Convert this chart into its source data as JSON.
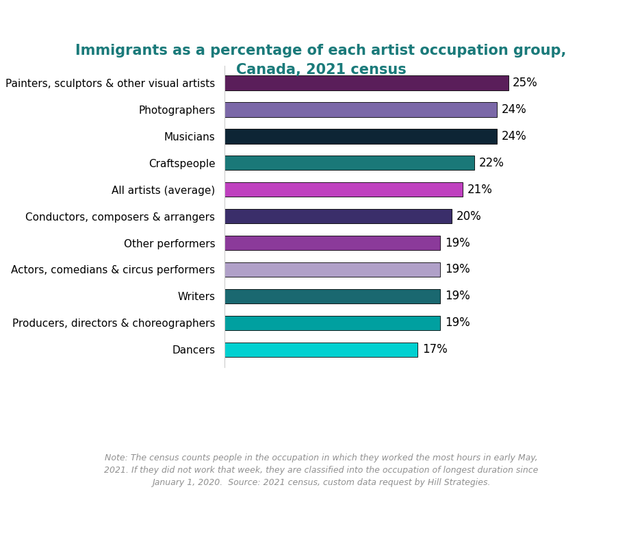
{
  "title": "Immigrants as a percentage of each artist occupation group,\nCanada, 2021 census",
  "title_color": "#1a7a7a",
  "categories": [
    "Dancers",
    "Producers, directors & choreographers",
    "Writers",
    "Actors, comedians & circus performers",
    "Other performers",
    "Conductors, composers & arrangers",
    "All artists (average)",
    "Craftspeople",
    "Musicians",
    "Photographers",
    "Painters, sculptors & other visual artists"
  ],
  "values": [
    17,
    19,
    19,
    19,
    19,
    20,
    21,
    22,
    24,
    24,
    25
  ],
  "bar_colors": [
    "#00d0d0",
    "#00a0a0",
    "#1a6870",
    "#b0a0c8",
    "#8b3a9a",
    "#3a2e6a",
    "#bf40bf",
    "#1a7878",
    "#0d2535",
    "#7b68a8",
    "#5a1e5a"
  ],
  "note": "Note: The census counts people in the occupation in which they worked the most hours in early May,\n2021. If they did not work that week, they are classified into the occupation of longest duration since\nJanuary 1, 2020.  Source: 2021 census, custom data request by Hill Strategies.",
  "note_color": "#909090",
  "xlim": [
    0,
    30
  ],
  "bar_label_color": "#000000",
  "background_color": "#ffffff",
  "bar_height": 0.55,
  "title_fontsize": 15,
  "label_fontsize": 11,
  "value_fontsize": 12
}
